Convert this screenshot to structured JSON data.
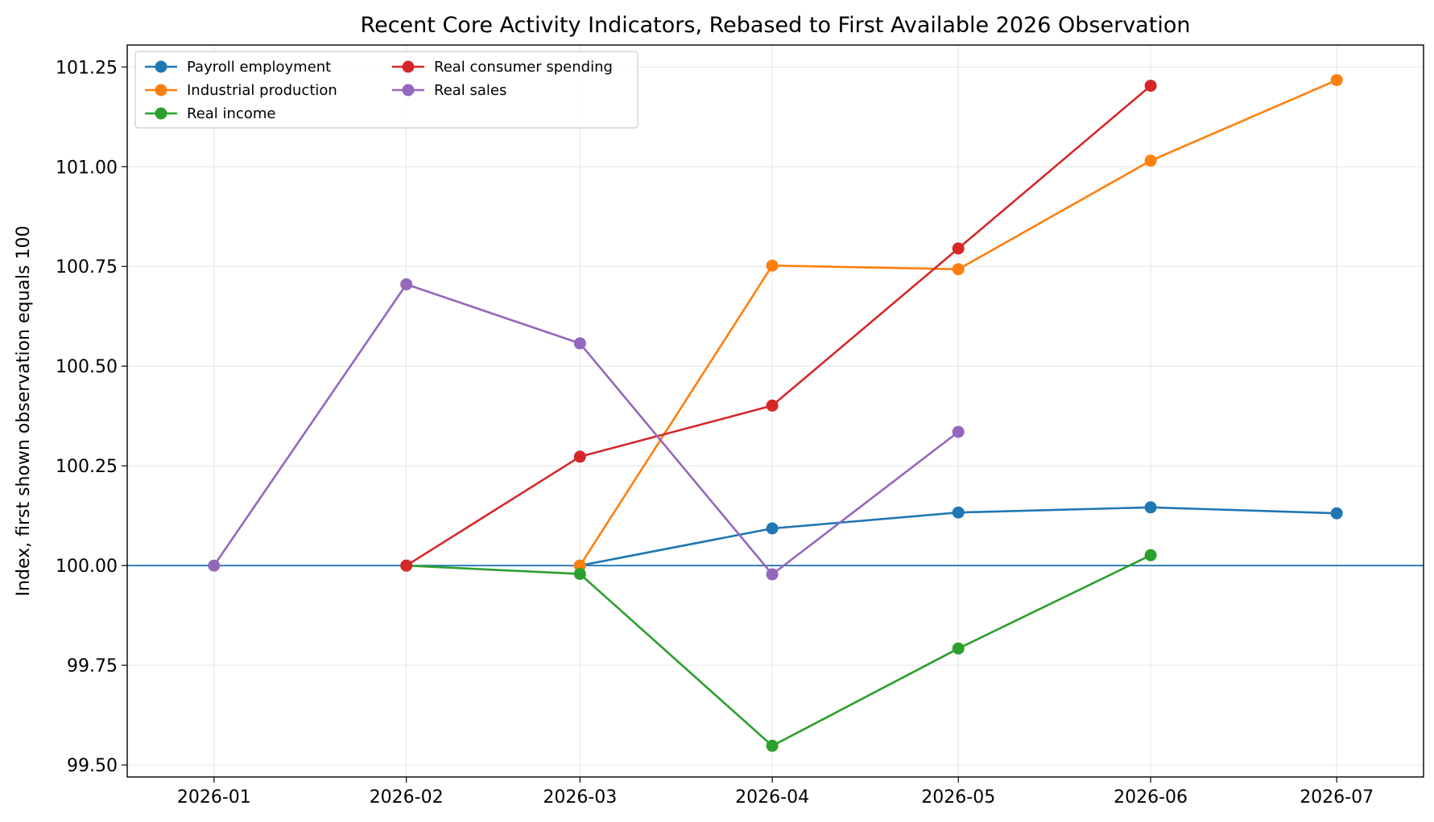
{
  "chart_data": {
    "type": "line",
    "title": "Recent Core Activity Indicators, Rebased to First Available 2026 Observation",
    "xlabel": "",
    "ylabel": "Index, first shown observation equals 100",
    "x": [
      "2026-01",
      "2026-02",
      "2026-03",
      "2026-04",
      "2026-05",
      "2026-06",
      "2026-07"
    ],
    "xlim": [
      "2025-12-18",
      "2026-07-15"
    ],
    "ylim": [
      99.47,
      101.305
    ],
    "yticks": [
      "99.50",
      "99.75",
      "100.00",
      "100.25",
      "100.50",
      "100.75",
      "101.00",
      "101.25"
    ],
    "grid": true,
    "legend_position": "top-left",
    "legend_columns": 2,
    "reference_line": {
      "y": 100.0,
      "color": "#1f77b4"
    },
    "series": [
      {
        "name": "Payroll employment",
        "color": "#1f77b4",
        "values": [
          null,
          null,
          100.0,
          100.093,
          100.133,
          100.146,
          100.131
        ]
      },
      {
        "name": "Industrial production",
        "color": "#ff7f0e",
        "values": [
          null,
          null,
          100.0,
          100.752,
          100.743,
          101.015,
          101.217
        ]
      },
      {
        "name": "Real income",
        "color": "#2ca02c",
        "values": [
          null,
          100.0,
          99.979,
          99.548,
          99.792,
          100.026,
          null
        ]
      },
      {
        "name": "Real consumer spending",
        "color": "#d62728",
        "values": [
          null,
          100.0,
          100.273,
          100.401,
          100.795,
          101.203,
          null
        ]
      },
      {
        "name": "Real sales",
        "color": "#9467bd",
        "values": [
          100.0,
          100.705,
          100.557,
          99.978,
          100.335,
          null,
          null
        ]
      }
    ]
  }
}
